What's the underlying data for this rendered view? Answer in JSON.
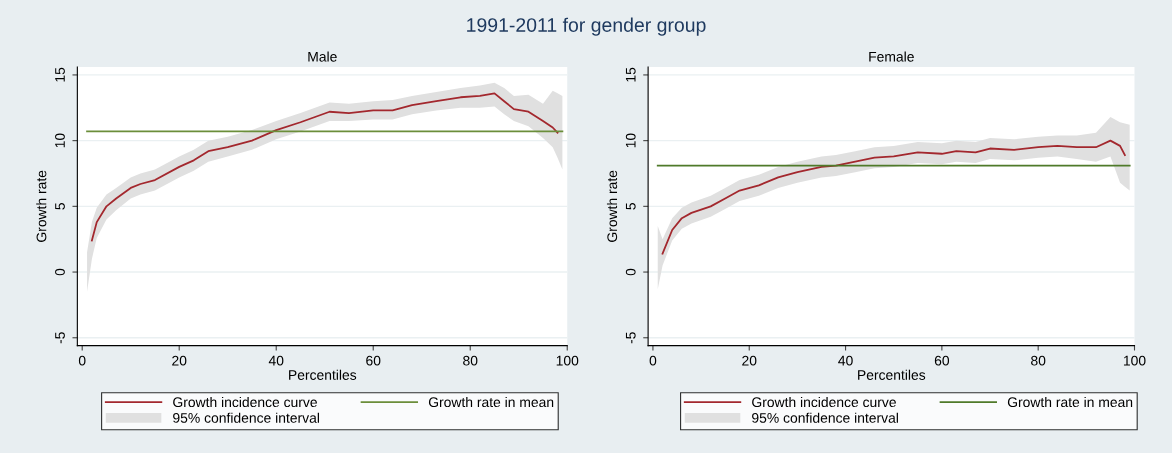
{
  "chart_data": [
    {
      "type": "line",
      "title": "Male",
      "xlabel": "Percentiles",
      "ylabel": "Growth rate",
      "annotations": [
        "1991-2011 for gender group",
        "95% confidence interval"
      ],
      "xlim": [
        -1,
        100
      ],
      "ylim": [
        -5.6,
        15.6
      ],
      "xticks": [
        0,
        20,
        40,
        60,
        80,
        100
      ],
      "yticks": [
        -5,
        0,
        5,
        10,
        15
      ],
      "grid": "y",
      "legend": "bottom",
      "series": [
        {
          "name": "Growth incidence curve",
          "color": "#a3282e",
          "x": [
            1,
            2,
            3,
            5,
            7,
            10,
            12,
            15,
            20,
            23,
            26,
            30,
            35,
            40,
            45,
            48,
            51,
            55,
            60,
            64,
            68,
            73,
            78,
            82,
            85,
            87,
            89,
            92,
            95,
            97,
            98,
            99
          ],
          "values": [
            null,
            2.4,
            3.8,
            5.0,
            5.6,
            6.4,
            6.7,
            7.0,
            8.0,
            8.5,
            9.2,
            9.5,
            10.0,
            10.8,
            11.4,
            11.8,
            12.2,
            12.1,
            12.3,
            12.3,
            12.7,
            13.0,
            13.3,
            13.4,
            13.6,
            13.0,
            12.4,
            12.2,
            11.5,
            11.0,
            10.6,
            null
          ],
          "lower": [
            -1.5,
            1.0,
            2.6,
            4.0,
            4.7,
            5.6,
            5.9,
            6.2,
            7.2,
            7.7,
            8.4,
            8.8,
            9.3,
            10.1,
            10.7,
            11.1,
            11.5,
            11.5,
            11.6,
            11.6,
            12.0,
            12.3,
            12.5,
            12.5,
            12.6,
            12.0,
            11.5,
            11.1,
            10.2,
            9.5,
            8.7,
            7.8
          ],
          "upper": [
            1.5,
            3.8,
            4.9,
            5.9,
            6.4,
            7.2,
            7.5,
            7.8,
            8.8,
            9.3,
            10.0,
            10.3,
            10.8,
            11.5,
            12.1,
            12.5,
            12.9,
            12.8,
            13.0,
            13.1,
            13.4,
            13.7,
            14.0,
            14.2,
            14.4,
            14.0,
            13.4,
            13.5,
            12.8,
            13.8,
            13.6,
            13.4
          ]
        },
        {
          "name": "Growth rate in mean",
          "color": "#6b8e3a",
          "x": [
            1,
            99
          ],
          "values": [
            10.7,
            10.7
          ]
        }
      ]
    },
    {
      "type": "line",
      "title": "Female",
      "xlabel": "Percentiles",
      "ylabel": "Growth rate",
      "annotations": [
        "95% confidence interval"
      ],
      "xlim": [
        -1,
        100
      ],
      "ylim": [
        -5.6,
        15.6
      ],
      "xticks": [
        0,
        20,
        40,
        60,
        80,
        100
      ],
      "yticks": [
        -5,
        0,
        5,
        10,
        15
      ],
      "grid": "y",
      "legend": "bottom",
      "series": [
        {
          "name": "Growth incidence curve",
          "color": "#a3282e",
          "x": [
            1,
            2,
            4,
            6,
            8,
            12,
            15,
            18,
            22,
            26,
            30,
            35,
            38,
            42,
            46,
            50,
            55,
            60,
            63,
            67,
            70,
            75,
            80,
            84,
            88,
            92,
            95,
            97,
            98,
            99
          ],
          "values": [
            null,
            1.4,
            3.2,
            4.1,
            4.5,
            5.0,
            5.6,
            6.2,
            6.6,
            7.2,
            7.6,
            8.0,
            8.1,
            8.4,
            8.7,
            8.8,
            9.1,
            9.0,
            9.2,
            9.1,
            9.4,
            9.3,
            9.5,
            9.6,
            9.5,
            9.5,
            10.0,
            9.6,
            8.9,
            null
          ],
          "lower": [
            -1.3,
            0.5,
            2.4,
            3.3,
            3.7,
            4.2,
            4.8,
            5.4,
            5.8,
            6.4,
            6.8,
            7.2,
            7.3,
            7.6,
            7.9,
            8.0,
            8.3,
            8.2,
            8.4,
            8.3,
            8.6,
            8.5,
            8.7,
            8.8,
            8.6,
            8.4,
            8.8,
            6.8,
            6.5,
            6.2
          ],
          "upper": [
            3.5,
            2.5,
            4.1,
            4.9,
            5.3,
            5.8,
            6.4,
            7.0,
            7.4,
            8.0,
            8.4,
            8.8,
            8.9,
            9.2,
            9.5,
            9.6,
            9.9,
            9.8,
            10.0,
            9.9,
            10.2,
            10.1,
            10.3,
            10.4,
            10.4,
            10.6,
            11.8,
            11.4,
            11.3,
            11.2
          ]
        },
        {
          "name": "Growth rate in mean",
          "color": "#4f7a2a",
          "x": [
            1,
            99
          ],
          "values": [
            8.1,
            8.1
          ]
        }
      ]
    }
  ]
}
